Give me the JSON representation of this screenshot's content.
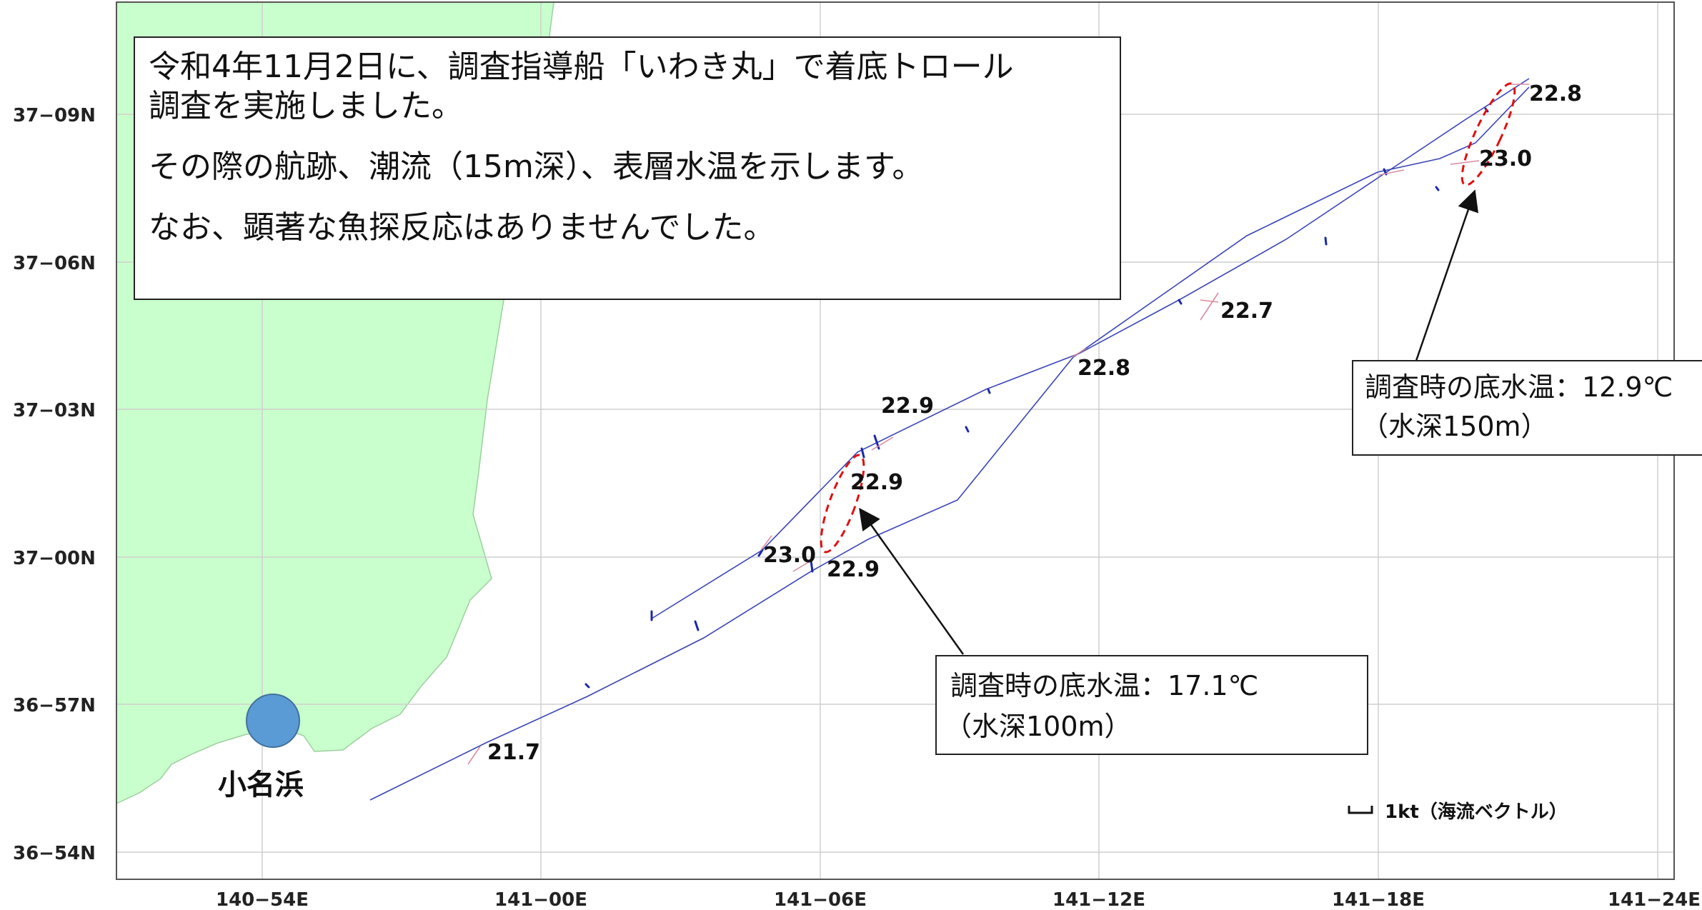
{
  "colors": {
    "land": "#c9ffcc",
    "track": "#3a44b8",
    "current_vector": "#1a2aa8",
    "survey_ellipse": "#e01010",
    "port_marker": "#5b9bd5",
    "grid": "#cfcfcf",
    "arrow_pink": "#d98ba0"
  },
  "axes": {
    "x_ticks": [
      "140−54E",
      "141−00E",
      "141−06E",
      "141−12E",
      "141−18E",
      "141−24E"
    ],
    "y_ticks": [
      "37−09N",
      "37−06N",
      "37−03N",
      "37−00N",
      "36−57N",
      "36−54N"
    ]
  },
  "info_box": {
    "line1": "令和4年11月2日に、調査指導船「いわき丸」で着底トロール",
    "line2": "調査を実施しました。",
    "line3": "その際の航跡、潮流（15m深）、表層水温を示します。",
    "line4": "なお、顕著な魚探反応はありませんでした。"
  },
  "temperatures": [
    {
      "label": "22.8"
    },
    {
      "label": "23.0"
    },
    {
      "label": "22.7"
    },
    {
      "label": "22.8"
    },
    {
      "label": "22.9"
    },
    {
      "label": "22.9"
    },
    {
      "label": "23.0"
    },
    {
      "label": "22.9"
    },
    {
      "label": "21.7"
    }
  ],
  "callouts": {
    "north": {
      "line1": "調査時の底水温：12.9℃",
      "line2": "（水深150m）"
    },
    "south": {
      "line1": "調査時の底水温：17.1℃",
      "line2": "（水深100m）"
    }
  },
  "port": {
    "name": "小名浜"
  },
  "legend": {
    "label": "1kt（海流ベクトル）"
  }
}
